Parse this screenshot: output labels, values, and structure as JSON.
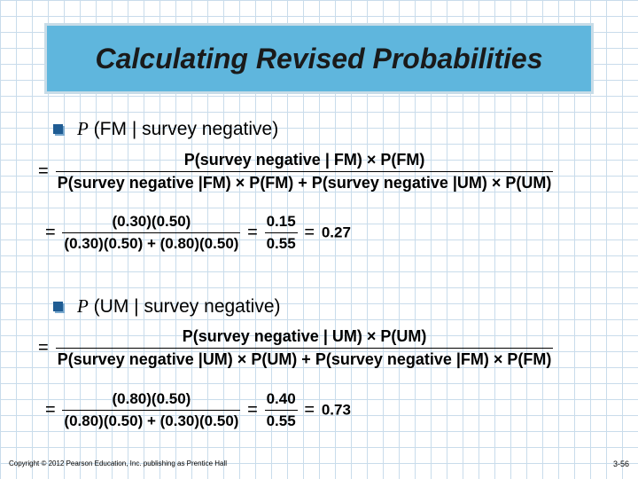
{
  "title": "Calculating Revised Probabilities",
  "sections": [
    {
      "heading_p": "P",
      "heading_event": "(FM | survey negative)",
      "formula": {
        "numerator": "P(survey negative | FM) × P(FM)",
        "denominator": "P(survey negative |FM) × P(FM) + P(survey negative |UM) × P(UM)"
      },
      "calc": {
        "num1": "(0.30)(0.50)",
        "den1": "(0.30)(0.50) + (0.80)(0.50)",
        "num2": "0.15",
        "den2": "0.55",
        "result": "0.27"
      }
    },
    {
      "heading_p": "P",
      "heading_event": "(UM | survey negative)",
      "formula": {
        "numerator": "P(survey negative | UM) × P(UM)",
        "denominator": "P(survey negative |UM) × P(UM) + P(survey negative |FM) × P(FM)"
      },
      "calc": {
        "num1": "(0.80)(0.50)",
        "den1": "(0.80)(0.50) + (0.30)(0.50)",
        "num2": "0.40",
        "den2": "0.55",
        "result": "0.73"
      }
    }
  ],
  "footer": {
    "copyright": "Copyright © 2012 Pearson Education, Inc. publishing as Prentice Hall",
    "page": "3-56"
  }
}
